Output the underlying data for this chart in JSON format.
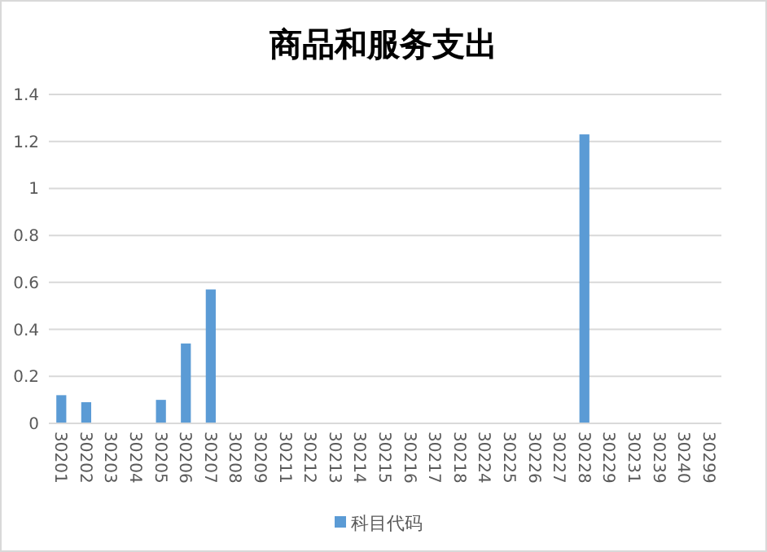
{
  "chart_data": {
    "type": "bar",
    "title": "商品和服务支出",
    "categories": [
      "30201",
      "30202",
      "30203",
      "30204",
      "30205",
      "30206",
      "30207",
      "30208",
      "30209",
      "30211",
      "30212",
      "30213",
      "30214",
      "30215",
      "30216",
      "30217",
      "30218",
      "30224",
      "30225",
      "30226",
      "30227",
      "30228",
      "30229",
      "30231",
      "30239",
      "30240",
      "30299"
    ],
    "series": [
      {
        "name": "科目代码",
        "color": "#5b9bd5",
        "values": [
          0.12,
          0.09,
          0,
          0,
          0.1,
          0.34,
          0.57,
          0,
          0,
          0,
          0,
          0,
          0,
          0,
          0,
          0,
          0,
          0,
          0,
          0,
          0,
          1.23,
          0,
          0,
          0,
          0,
          0
        ]
      }
    ],
    "ylim": [
      0,
      1.4
    ],
    "yticks": [
      0,
      0.2,
      0.4,
      0.6,
      0.8,
      1,
      1.2,
      1.4
    ],
    "grid": "y",
    "legend": "bottom"
  }
}
